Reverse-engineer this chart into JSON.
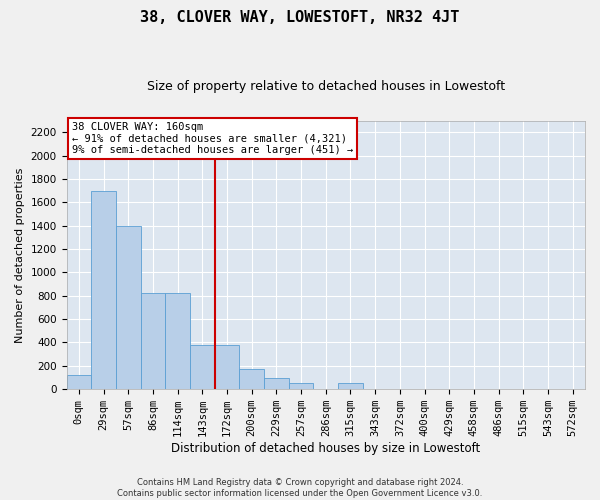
{
  "title": "38, CLOVER WAY, LOWESTOFT, NR32 4JT",
  "subtitle": "Size of property relative to detached houses in Lowestoft",
  "xlabel": "Distribution of detached houses by size in Lowestoft",
  "ylabel": "Number of detached properties",
  "categories": [
    "0sqm",
    "29sqm",
    "57sqm",
    "86sqm",
    "114sqm",
    "143sqm",
    "172sqm",
    "200sqm",
    "229sqm",
    "257sqm",
    "286sqm",
    "315sqm",
    "343sqm",
    "372sqm",
    "400sqm",
    "429sqm",
    "458sqm",
    "486sqm",
    "515sqm",
    "543sqm",
    "572sqm"
  ],
  "values": [
    120,
    1700,
    1400,
    820,
    820,
    380,
    375,
    175,
    100,
    50,
    0,
    50,
    0,
    0,
    0,
    0,
    0,
    0,
    0,
    0,
    0
  ],
  "bar_color": "#b8cfe8",
  "bar_edge_color": "#5a9fd4",
  "background_color": "#dde6f0",
  "grid_color": "#ffffff",
  "annotation_box_color": "#cc0000",
  "annotation_line_color": "#cc0000",
  "property_line_x": 5.5,
  "annotation_title": "38 CLOVER WAY: 160sqm",
  "annotation_line1": "← 91% of detached houses are smaller (4,321)",
  "annotation_line2": "9% of semi-detached houses are larger (451) →",
  "ylim": [
    0,
    2300
  ],
  "yticks": [
    0,
    200,
    400,
    600,
    800,
    1000,
    1200,
    1400,
    1600,
    1800,
    2000,
    2200
  ],
  "footer_line1": "Contains HM Land Registry data © Crown copyright and database right 2024.",
  "footer_line2": "Contains public sector information licensed under the Open Government Licence v3.0.",
  "title_fontsize": 11,
  "subtitle_fontsize": 9,
  "xlabel_fontsize": 8.5,
  "ylabel_fontsize": 8,
  "tick_fontsize": 7.5,
  "annot_fontsize": 7.5,
  "footer_fontsize": 6
}
